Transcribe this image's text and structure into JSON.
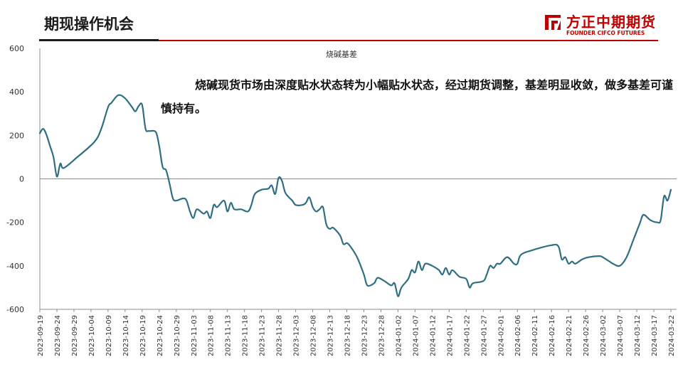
{
  "header": {
    "title": "期现操作机会",
    "logo_cn": "方正中期期货",
    "logo_en": "FOUNDER CIFCO FUTURES",
    "brand_color": "#c00000"
  },
  "annotation": "烧碱现货市场由深度贴水状态转为小幅贴水状态，经过期货调整，基差明显收敛，做多基差可谨慎持有。",
  "chart_data": {
    "type": "line",
    "title": "烧碱基差",
    "xlabel": "",
    "ylabel": "",
    "ylim": [
      -600,
      600
    ],
    "yticks": [
      600,
      400,
      200,
      0,
      -200,
      -400,
      -600
    ],
    "grid": false,
    "x_tick_labels": [
      "2023-09-19",
      "2023-09-24",
      "2023-09-29",
      "2023-10-04",
      "2023-10-09",
      "2023-10-14",
      "2023-10-19",
      "2023-10-24",
      "2023-10-29",
      "2023-11-03",
      "2023-11-08",
      "2023-11-13",
      "2023-11-18",
      "2023-11-23",
      "2023-11-28",
      "2023-12-03",
      "2023-12-08",
      "2023-12-13",
      "2023-12-18",
      "2023-12-23",
      "2023-12-28",
      "2024-01-02",
      "2024-01-07",
      "2024-01-12",
      "2024-01-17",
      "2024-01-22",
      "2024-01-27",
      "2024-02-01",
      "2024-02-06",
      "2024-02-11",
      "2024-02-16",
      "2024-02-21",
      "2024-02-26",
      "2024-03-02",
      "2024-03-07",
      "2024-03-12",
      "2024-03-17",
      "2024-03-22"
    ],
    "series": [
      {
        "color": "#2f6f82",
        "points": [
          [
            "2023-09-19",
            210
          ],
          [
            "2023-09-20",
            230
          ],
          [
            "2023-09-21",
            200
          ],
          [
            "2023-09-22",
            150
          ],
          [
            "2023-09-23",
            100
          ],
          [
            "2023-09-24",
            10
          ],
          [
            "2023-09-25",
            70
          ],
          [
            "2023-09-26",
            50
          ],
          [
            "2023-09-30",
            100
          ],
          [
            "2023-10-05",
            170
          ],
          [
            "2023-10-07",
            230
          ],
          [
            "2023-10-09",
            330
          ],
          [
            "2023-10-10",
            350
          ],
          [
            "2023-10-12",
            385
          ],
          [
            "2023-10-14",
            370
          ],
          [
            "2023-10-16",
            330
          ],
          [
            "2023-10-17",
            310
          ],
          [
            "2023-10-18",
            335
          ],
          [
            "2023-10-19",
            340
          ],
          [
            "2023-10-20",
            230
          ],
          [
            "2023-10-21",
            220
          ],
          [
            "2023-10-23",
            215
          ],
          [
            "2023-10-24",
            150
          ],
          [
            "2023-10-25",
            55
          ],
          [
            "2023-10-26",
            40
          ],
          [
            "2023-10-27",
            -20
          ],
          [
            "2023-10-28",
            -90
          ],
          [
            "2023-10-29",
            -100
          ],
          [
            "2023-10-31",
            -90
          ],
          [
            "2023-11-01",
            -100
          ],
          [
            "2023-11-02",
            -150
          ],
          [
            "2023-11-03",
            -180
          ],
          [
            "2023-11-04",
            -140
          ],
          [
            "2023-11-06",
            -160
          ],
          [
            "2023-11-07",
            -150
          ],
          [
            "2023-11-08",
            -180
          ],
          [
            "2023-11-09",
            -120
          ],
          [
            "2023-11-10",
            -130
          ],
          [
            "2023-11-12",
            -100
          ],
          [
            "2023-11-13",
            -150
          ],
          [
            "2023-11-14",
            -110
          ],
          [
            "2023-11-15",
            -140
          ],
          [
            "2023-11-17",
            -140
          ],
          [
            "2023-11-19",
            -150
          ],
          [
            "2023-11-20",
            -120
          ],
          [
            "2023-11-21",
            -70
          ],
          [
            "2023-11-23",
            -50
          ],
          [
            "2023-11-25",
            -45
          ],
          [
            "2023-11-26",
            -30
          ],
          [
            "2023-11-27",
            -70
          ],
          [
            "2023-11-28",
            5
          ],
          [
            "2023-11-29",
            -10
          ],
          [
            "2023-11-30",
            -65
          ],
          [
            "2023-12-02",
            -100
          ],
          [
            "2023-12-03",
            -120
          ],
          [
            "2023-12-05",
            -120
          ],
          [
            "2023-12-06",
            -110
          ],
          [
            "2023-12-07",
            -85
          ],
          [
            "2023-12-08",
            -130
          ],
          [
            "2023-12-09",
            -150
          ],
          [
            "2023-12-10",
            -140
          ],
          [
            "2023-12-11",
            -130
          ],
          [
            "2023-12-12",
            -210
          ],
          [
            "2023-12-13",
            -230
          ],
          [
            "2023-12-14",
            -225
          ],
          [
            "2023-12-16",
            -260
          ],
          [
            "2023-12-17",
            -300
          ],
          [
            "2023-12-18",
            -295
          ],
          [
            "2023-12-19",
            -310
          ],
          [
            "2023-12-21",
            -360
          ],
          [
            "2023-12-23",
            -440
          ],
          [
            "2023-12-24",
            -490
          ],
          [
            "2023-12-26",
            -480
          ],
          [
            "2023-12-27",
            -455
          ],
          [
            "2023-12-29",
            -470
          ],
          [
            "2023-12-31",
            -490
          ],
          [
            "2024-01-01",
            -480
          ],
          [
            "2024-01-02",
            -540
          ],
          [
            "2024-01-03",
            -500
          ],
          [
            "2024-01-05",
            -460
          ],
          [
            "2024-01-06",
            -420
          ],
          [
            "2024-01-07",
            -430
          ],
          [
            "2024-01-08",
            -380
          ],
          [
            "2024-01-09",
            -420
          ],
          [
            "2024-01-10",
            -390
          ],
          [
            "2024-01-12",
            -400
          ],
          [
            "2024-01-14",
            -420
          ],
          [
            "2024-01-15",
            -440
          ],
          [
            "2024-01-16",
            -410
          ],
          [
            "2024-01-17",
            -440
          ],
          [
            "2024-01-18",
            -420
          ],
          [
            "2024-01-20",
            -450
          ],
          [
            "2024-01-22",
            -460
          ],
          [
            "2024-01-23",
            -500
          ],
          [
            "2024-01-24",
            -480
          ],
          [
            "2024-01-27",
            -470
          ],
          [
            "2024-01-28",
            -440
          ],
          [
            "2024-01-29",
            -400
          ],
          [
            "2024-01-30",
            -410
          ],
          [
            "2024-01-31",
            -390
          ],
          [
            "2024-02-01",
            -390
          ],
          [
            "2024-02-03",
            -360
          ],
          [
            "2024-02-05",
            -390
          ],
          [
            "2024-02-06",
            -390
          ],
          [
            "2024-02-07",
            -350
          ],
          [
            "2024-02-10",
            -330
          ],
          [
            "2024-02-16",
            -305
          ],
          [
            "2024-02-18",
            -310
          ],
          [
            "2024-02-19",
            -370
          ],
          [
            "2024-02-20",
            -360
          ],
          [
            "2024-02-21",
            -390
          ],
          [
            "2024-02-22",
            -380
          ],
          [
            "2024-02-23",
            -390
          ],
          [
            "2024-02-25",
            -370
          ],
          [
            "2024-02-27",
            -360
          ],
          [
            "2024-03-01",
            -355
          ],
          [
            "2024-03-02",
            -360
          ],
          [
            "2024-03-04",
            -380
          ],
          [
            "2024-03-05",
            -390
          ],
          [
            "2024-03-07",
            -400
          ],
          [
            "2024-03-09",
            -360
          ],
          [
            "2024-03-11",
            -280
          ],
          [
            "2024-03-12",
            -240
          ],
          [
            "2024-03-13",
            -200
          ],
          [
            "2024-03-14",
            -165
          ],
          [
            "2024-03-16",
            -190
          ],
          [
            "2024-03-18",
            -200
          ],
          [
            "2024-03-19",
            -190
          ],
          [
            "2024-03-20",
            -80
          ],
          [
            "2024-03-21",
            -100
          ],
          [
            "2024-03-22",
            -50
          ]
        ]
      }
    ]
  }
}
